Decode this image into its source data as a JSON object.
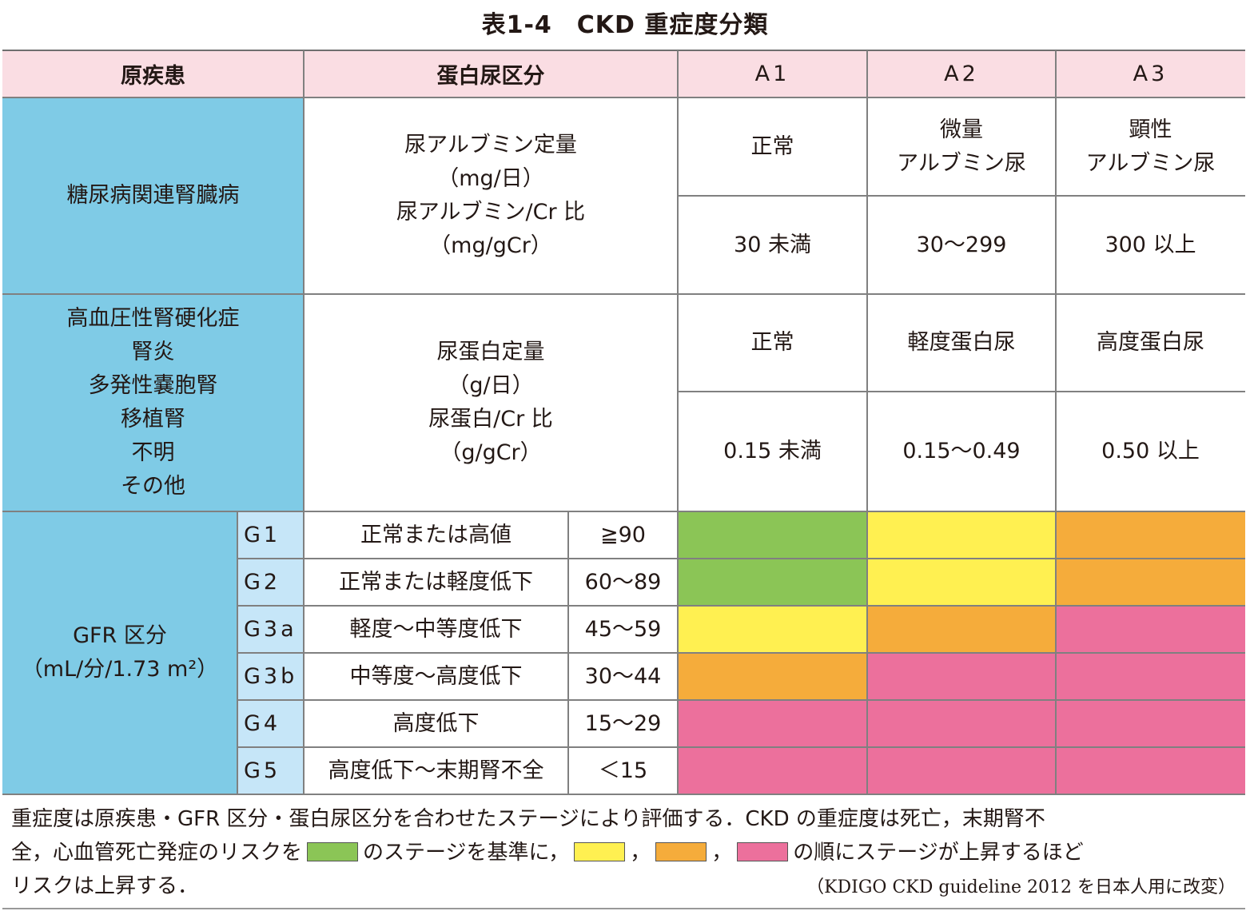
{
  "title": "表1-4　CKD 重症度分類",
  "header": {
    "cause": "原疾患",
    "proteinuria_category": "蛋白尿区分",
    "A1": "A1",
    "A2": "A2",
    "A3": "A3"
  },
  "albumin_section": {
    "cause": "糖尿病関連腎臓病",
    "measure_lines": [
      "尿アルブミン定量",
      "（mg/日）",
      "尿アルブミン/Cr 比",
      "（mg/gCr）"
    ],
    "labels": [
      [
        "正常"
      ],
      [
        "微量",
        "アルブミン尿"
      ],
      [
        "顕性",
        "アルブミン尿"
      ]
    ],
    "values": [
      "30 未満",
      "30～299",
      "300 以上"
    ]
  },
  "protein_section": {
    "causes": [
      "高血圧性腎硬化症",
      "腎炎",
      "多発性嚢胞腎",
      "移植腎",
      "不明",
      "その他"
    ],
    "measure_lines": [
      "尿蛋白定量",
      "（g/日）",
      "尿蛋白/Cr 比",
      "（g/gCr）"
    ],
    "labels": [
      "正常",
      "軽度蛋白尿",
      "高度蛋白尿"
    ],
    "values": [
      "0.15 未満",
      "0.15～0.49",
      "0.50 以上"
    ]
  },
  "gfr_section": {
    "label_line1": "GFR 区分",
    "label_line2": "（mL/分/1.73 m²）",
    "rows": [
      {
        "grade": "G1",
        "description": "正常または高値",
        "range": "≧90",
        "risk": [
          "green",
          "yellow",
          "orange"
        ]
      },
      {
        "grade": "G2",
        "description": "正常または軽度低下",
        "range": "60～89",
        "risk": [
          "green",
          "yellow",
          "orange"
        ]
      },
      {
        "grade": "G3a",
        "description": "軽度～中等度低下",
        "range": "45～59",
        "risk": [
          "yellow",
          "orange",
          "red"
        ]
      },
      {
        "grade": "G3b",
        "description": "中等度～高度低下",
        "range": "30～44",
        "risk": [
          "orange",
          "red",
          "red"
        ]
      },
      {
        "grade": "G4",
        "description": "高度低下",
        "range": "15～29",
        "risk": [
          "red",
          "red",
          "red"
        ]
      },
      {
        "grade": "G5",
        "description": "高度低下～末期腎不全",
        "range": "＜15",
        "risk": [
          "red",
          "red",
          "red"
        ]
      }
    ]
  },
  "colors": {
    "green": "#8bc556",
    "yellow": "#fff051",
    "orange": "#f5ac3b",
    "red": "#ec709c",
    "header_pink": "#fadde3",
    "cause_blue": "#7fcbe6",
    "grade_light_blue": "#c6e6f8"
  },
  "footer": {
    "line1": "重症度は原疾患・GFR 区分・蛋白尿区分を合わせたステージにより評価する．CKD の重症度は死亡，末期腎不",
    "line2_a": "全，心血管死亡発症のリスクを",
    "line2_b": "のステージを基準に，",
    "line2_sep1": "，",
    "line2_sep2": "，",
    "line2_c": "の順にステージが上昇するほど",
    "line3": "リスクは上昇する．",
    "source": "（KDIGO CKD guideline 2012 を日本人用に改変）"
  }
}
